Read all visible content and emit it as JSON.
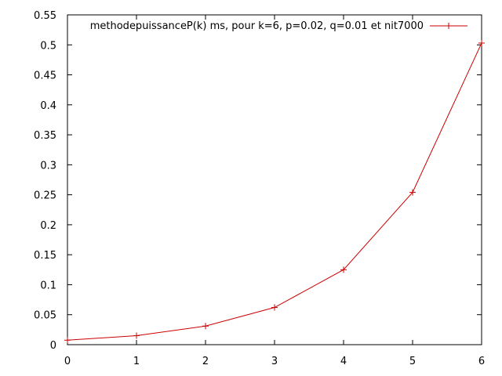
{
  "chart_data": {
    "type": "line",
    "title": "",
    "xlabel": "",
    "ylabel": "",
    "xlim": [
      0,
      6
    ],
    "ylim": [
      0,
      0.55
    ],
    "xticks": [
      "0",
      "1",
      "2",
      "3",
      "4",
      "5",
      "6"
    ],
    "yticks": [
      "0",
      "0.05",
      "0.1",
      "0.15",
      "0.2",
      "0.25",
      "0.3",
      "0.35",
      "0.4",
      "0.45",
      "0.5",
      "0.55"
    ],
    "grid": false,
    "legend_position": "top-right",
    "series": [
      {
        "name": "methodepuissanceP(k) ms, pour k=6, p=0.02, q=0.01 et nit7000",
        "color": "#cc0000",
        "marker": "plus",
        "x": [
          0,
          1,
          2,
          3,
          4,
          5,
          6
        ],
        "y": [
          0.0075,
          0.015,
          0.031,
          0.062,
          0.125,
          0.254,
          0.503
        ]
      }
    ]
  }
}
